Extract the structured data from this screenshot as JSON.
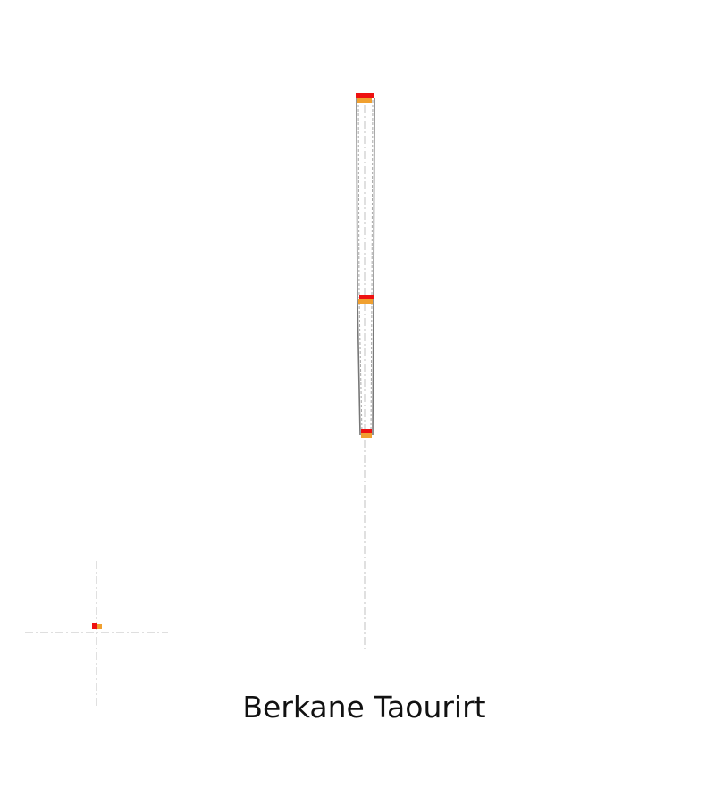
{
  "map": {
    "title": "Berkane Taourirt",
    "colors": {
      "background": "#ffffff",
      "guide_line": "#cccccc",
      "route_outline": "#777777",
      "route_dash": "#a8a8a8",
      "marker_top": "#ee1111",
      "marker_bottom": "#f0a030"
    },
    "features": {
      "route_segment_upper": "route",
      "route_segment_lower": "route",
      "markers": [
        "station-marker",
        "station-marker",
        "station-marker",
        "station-marker"
      ]
    }
  }
}
